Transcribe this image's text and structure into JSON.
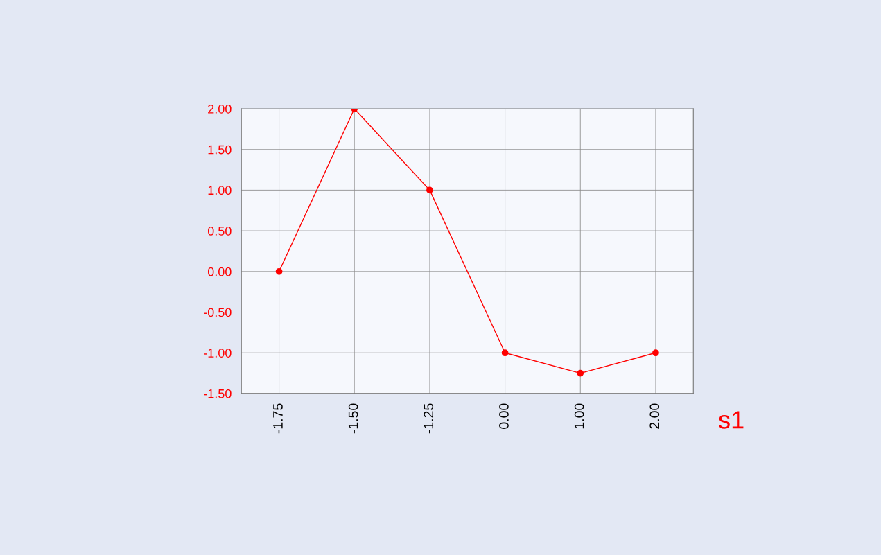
{
  "chart_data": {
    "type": "line",
    "categories": [
      "-1.75",
      "-1.50",
      "-1.25",
      "0.00",
      "1.00",
      "2.00"
    ],
    "series": [
      {
        "name": "s1",
        "color": "#ff0000",
        "values": [
          0,
          2,
          1,
          -1,
          -1.25,
          -1
        ]
      }
    ],
    "ylim": [
      -1.5,
      2.0
    ],
    "yticks": [
      {
        "value": -1.5,
        "label": "-1.50"
      },
      {
        "value": -1.0,
        "label": "-1.00"
      },
      {
        "value": -0.5,
        "label": "-0.50"
      },
      {
        "value": 0,
        "label": "0.00"
      },
      {
        "value": 0.5,
        "label": "0.50"
      },
      {
        "value": 1.0,
        "label": "1.00"
      },
      {
        "value": 1.5,
        "label": "1.50"
      },
      {
        "value": 2.0,
        "label": "2.00"
      }
    ],
    "grid": true,
    "legend": "bottom right",
    "marker": "circle",
    "line_style": "solid"
  }
}
